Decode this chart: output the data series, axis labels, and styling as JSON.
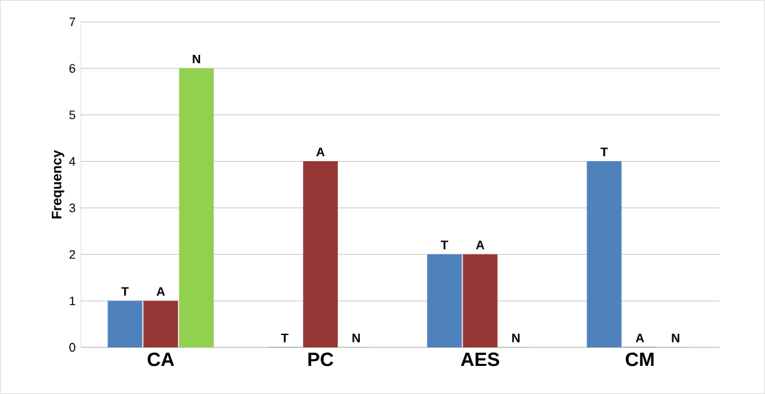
{
  "chart_data": {
    "type": "bar",
    "ylabel": "Frequency",
    "categories": [
      "CA",
      "PC",
      "AES",
      "CM"
    ],
    "series": [
      {
        "name": "T",
        "color": "#4f81bd",
        "values": [
          1,
          0,
          2,
          4
        ]
      },
      {
        "name": "A",
        "color": "#953735",
        "values": [
          1,
          4,
          2,
          0
        ]
      },
      {
        "name": "N",
        "color": "#92d050",
        "values": [
          6,
          0,
          0,
          0
        ]
      }
    ],
    "ylim": [
      0,
      7
    ],
    "yticks": [
      0,
      1,
      2,
      3,
      4,
      5,
      6,
      7
    ],
    "grid": "y"
  }
}
